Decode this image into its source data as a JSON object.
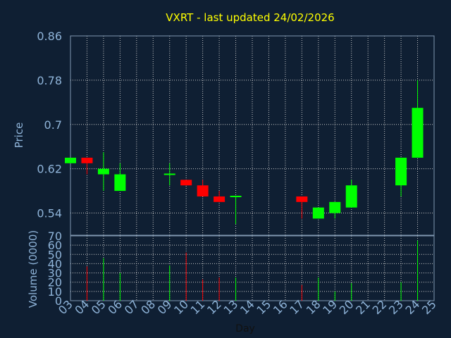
{
  "chart_data": [
    {
      "type": "candlestick",
      "title": "VXRT - last updated 24/02/2026",
      "xlabel": "",
      "ylabel": "Price",
      "ylim": [
        0.5,
        0.86
      ],
      "yticks": [
        "0.86",
        "0.78",
        "0.7",
        "0.62",
        "0.54"
      ],
      "grid": true,
      "colors": {
        "up": "#00ff00",
        "down": "#ff0000",
        "title": "#ffff00",
        "axis_text": "#8fb4d9"
      },
      "candles": [
        {
          "day": "03",
          "open": 0.63,
          "high": 0.64,
          "low": 0.63,
          "close": 0.64
        },
        {
          "day": "04",
          "open": 0.64,
          "high": 0.64,
          "low": 0.61,
          "close": 0.63
        },
        {
          "day": "05",
          "open": 0.61,
          "high": 0.65,
          "low": 0.58,
          "close": 0.62
        },
        {
          "day": "06",
          "open": 0.58,
          "high": 0.63,
          "low": 0.58,
          "close": 0.61
        },
        {
          "day": "09",
          "open": 0.61,
          "high": 0.63,
          "low": 0.59,
          "close": 0.61
        },
        {
          "day": "10",
          "open": 0.6,
          "high": 0.6,
          "low": 0.59,
          "close": 0.59
        },
        {
          "day": "11",
          "open": 0.59,
          "high": 0.6,
          "low": 0.57,
          "close": 0.57
        },
        {
          "day": "12",
          "open": 0.57,
          "high": 0.58,
          "low": 0.56,
          "close": 0.56
        },
        {
          "day": "13",
          "open": 0.57,
          "high": 0.57,
          "low": 0.52,
          "close": 0.57
        },
        {
          "day": "17",
          "open": 0.57,
          "high": 0.57,
          "low": 0.53,
          "close": 0.56
        },
        {
          "day": "18",
          "open": 0.53,
          "high": 0.55,
          "low": 0.53,
          "close": 0.55
        },
        {
          "day": "19",
          "open": 0.54,
          "high": 0.56,
          "low": 0.53,
          "close": 0.56
        },
        {
          "day": "20",
          "open": 0.55,
          "high": 0.6,
          "low": 0.55,
          "close": 0.59
        },
        {
          "day": "23",
          "open": 0.59,
          "high": 0.64,
          "low": 0.57,
          "close": 0.64
        },
        {
          "day": "24",
          "open": 0.64,
          "high": 0.78,
          "low": 0.64,
          "close": 0.73
        }
      ]
    },
    {
      "type": "bar",
      "xlabel": "Day",
      "ylabel": "Volume (0000)",
      "ylim": [
        0,
        70
      ],
      "yticks": [
        "70",
        "60",
        "50",
        "40",
        "30",
        "20",
        "10",
        "0"
      ],
      "categories": [
        "03",
        "04",
        "05",
        "06",
        "07",
        "08",
        "09",
        "10",
        "11",
        "12",
        "13",
        "14",
        "15",
        "16",
        "17",
        "18",
        "19",
        "20",
        "21",
        "22",
        "23",
        "24",
        "25"
      ],
      "volume": [
        {
          "day": "04",
          "value": 37,
          "dir": "down"
        },
        {
          "day": "05",
          "value": 46,
          "dir": "up"
        },
        {
          "day": "06",
          "value": 30,
          "dir": "up"
        },
        {
          "day": "09",
          "value": 38,
          "dir": "up"
        },
        {
          "day": "10",
          "value": 52,
          "dir": "down"
        },
        {
          "day": "11",
          "value": 23,
          "dir": "down"
        },
        {
          "day": "12",
          "value": 25,
          "dir": "down"
        },
        {
          "day": "13",
          "value": 25,
          "dir": "up"
        },
        {
          "day": "17",
          "value": 17,
          "dir": "down"
        },
        {
          "day": "18",
          "value": 25,
          "dir": "up"
        },
        {
          "day": "19",
          "value": 10,
          "dir": "up"
        },
        {
          "day": "20",
          "value": 19,
          "dir": "up"
        },
        {
          "day": "23",
          "value": 20,
          "dir": "up"
        },
        {
          "day": "24",
          "value": 65,
          "dir": "up"
        }
      ]
    }
  ]
}
